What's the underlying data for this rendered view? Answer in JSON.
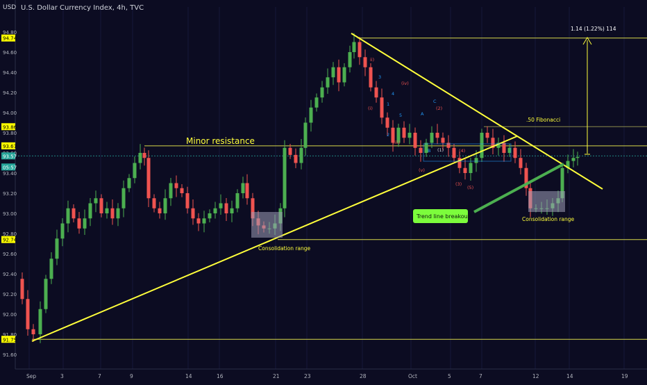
{
  "header": {
    "currency": "USD",
    "title": "U.S. Dollar Currency Index, 4h, TVC"
  },
  "chart_data": {
    "type": "candlestick",
    "ylim": [
      91.5,
      94.85
    ],
    "y_ticks": [
      "94.80",
      "94.60",
      "94.40",
      "94.20",
      "94.00",
      "93.80",
      "93.60",
      "93.40",
      "93.20",
      "93.00",
      "92.80",
      "92.60",
      "92.40",
      "92.20",
      "92.00",
      "91.80",
      "91.60"
    ],
    "y_tick_values": [
      94.8,
      94.6,
      94.4,
      94.2,
      94.0,
      93.8,
      93.6,
      93.4,
      93.2,
      93.0,
      92.8,
      92.6,
      92.4,
      92.2,
      92.0,
      91.8,
      91.6
    ],
    "x_ticks": [
      "Sep",
      "3",
      "7",
      "9",
      "14",
      "16",
      "21",
      "23",
      "28",
      "Oct",
      "5",
      "7",
      "12",
      "14",
      "19"
    ],
    "price_badges": [
      {
        "label": "94.74",
        "value": 94.74,
        "color": "#ffff00",
        "text_color": "#000000"
      },
      {
        "label": "93.86",
        "value": 93.86,
        "color": "#ffff00",
        "text_color": "#000000"
      },
      {
        "label": "93.67",
        "value": 93.67,
        "color": "#ffff00",
        "text_color": "#000000"
      },
      {
        "label": "93.57",
        "value": 93.57,
        "color": "#26a69a",
        "text_color": "#ffffff"
      },
      {
        "label": "05:57",
        "value": 93.46,
        "color": "#26a69a",
        "text_color": "#ffffff"
      },
      {
        "label": "92.74",
        "value": 92.74,
        "color": "#ffff00",
        "text_color": "#000000"
      },
      {
        "label": "91.75",
        "value": 91.75,
        "color": "#ffff00",
        "text_color": "#000000"
      }
    ],
    "horizontal_levels": [
      94.74,
      93.86,
      93.67,
      92.74,
      91.75
    ],
    "annotations": {
      "minor_resistance": "Minor resistance",
      "consolidation_1": "Consolidation range",
      "consolidation_2": "Consolidation range",
      "fibonacci": ".50 Fibonacci",
      "target": "1.14 (1.22%) 114",
      "trendline_breakout": "Trend line breakout"
    },
    "wave_labels": [
      {
        "text": "ii)",
        "color": "#ef5350"
      },
      {
        "text": "(iv)",
        "color": "#ef5350"
      },
      {
        "text": "(i)",
        "color": "#ef5350"
      },
      {
        "text": "(iii)",
        "color": "#ef5350"
      },
      {
        "text": "(v)",
        "color": "#ef5350"
      },
      {
        "text": "(2)",
        "color": "#ef5350"
      },
      {
        "text": "(1)",
        "color": "#d1d4dc"
      },
      {
        "text": "(3)",
        "color": "#ef5350"
      },
      {
        "text": "(5)",
        "color": "#ef5350"
      },
      {
        "text": "(4)",
        "color": "#ef5350"
      },
      {
        "text": "A",
        "color": "#2196f3"
      },
      {
        "text": "C",
        "color": "#2196f3"
      },
      {
        "text": "B",
        "color": "#2196f3"
      },
      {
        "text": "1",
        "color": "#2196f3"
      },
      {
        "text": "2",
        "color": "#2196f3"
      },
      {
        "text": "3",
        "color": "#2196f3"
      },
      {
        "text": "4",
        "color": "#2196f3"
      },
      {
        "text": "5",
        "color": "#2196f3"
      }
    ],
    "colors": {
      "up": "#26a69a",
      "up_bright": "#4caf50",
      "down": "#ef5350",
      "annotation": "#ffff3b",
      "background": "#0c0c22"
    }
  }
}
